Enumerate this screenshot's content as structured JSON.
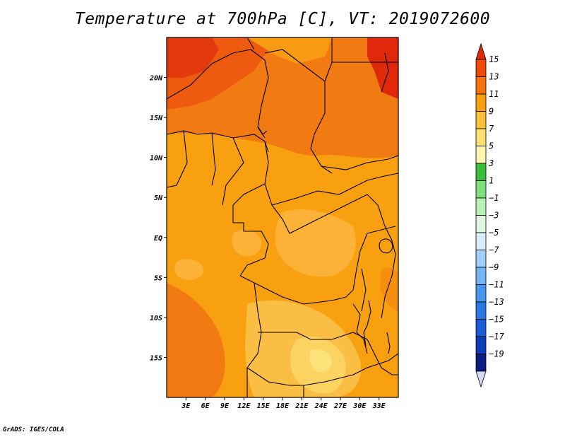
{
  "title": "Temperature at 700hPa [C], VT: 2019072600",
  "credit": "GrADS: IGES/COLA",
  "map": {
    "lon_range": [
      0,
      36
    ],
    "lat_range": [
      -20,
      25
    ],
    "x_ticks": [
      "3E",
      "6E",
      "9E",
      "12E",
      "15E",
      "18E",
      "21E",
      "24E",
      "27E",
      "30E",
      "33E"
    ],
    "x_tick_values": [
      3,
      6,
      9,
      12,
      15,
      18,
      21,
      24,
      27,
      30,
      33
    ],
    "y_ticks": [
      "20N",
      "15N",
      "10N",
      "5N",
      "EQ",
      "5S",
      "10S",
      "15S"
    ],
    "y_tick_values": [
      20,
      15,
      10,
      5,
      0,
      -5,
      -10,
      -15
    ]
  },
  "colorbar": {
    "labels": [
      "15",
      "13",
      "11",
      "9",
      "7",
      "5",
      "3",
      "1",
      "−1",
      "−3",
      "−5",
      "−7",
      "−9",
      "−11",
      "−13",
      "−15",
      "−17",
      "−19"
    ],
    "colors": [
      "#e02a08",
      "#f04a0a",
      "#f8720c",
      "#f9a012",
      "#fac03a",
      "#fde070",
      "#fdf6b0",
      "#3bbf3b",
      "#7de07d",
      "#b8f0b8",
      "#e0f6e0",
      "#d8ecfa",
      "#a0d0f8",
      "#72b4f4",
      "#4896ee",
      "#2a78e4",
      "#1a5cd8",
      "#0c3cb8",
      "#0a1c80",
      "#d8d8f8"
    ]
  }
}
